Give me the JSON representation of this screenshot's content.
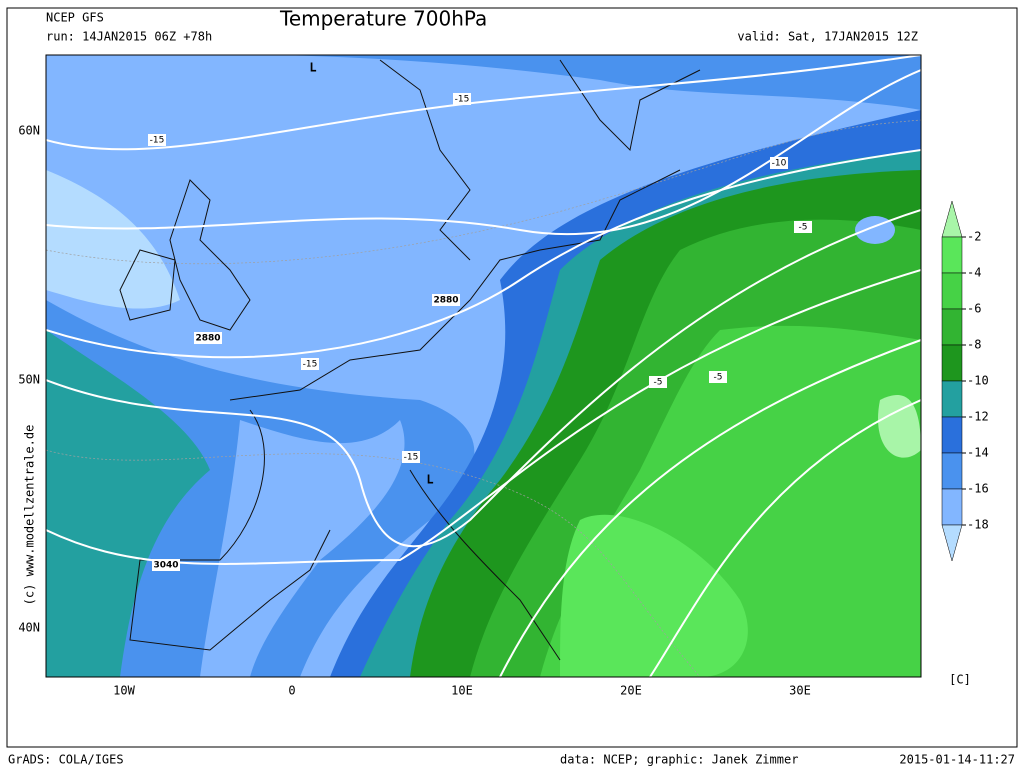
{
  "header": {
    "model": "NCEP GFS",
    "run": "run: 14JAN2015 06Z +78h",
    "title": "Temperature 700hPa",
    "valid": "valid: Sat, 17JAN2015 12Z"
  },
  "axes": {
    "lat_labels": [
      "60N",
      "50N",
      "40N"
    ],
    "lon_labels": [
      "10W",
      "0",
      "10E",
      "20E",
      "30E"
    ]
  },
  "colorbar": {
    "labels": [
      "-2",
      "-4",
      "-6",
      "-8",
      "-10",
      "-12",
      "-14",
      "-16",
      "-18"
    ],
    "unit": "[C]",
    "colors": [
      "#a8f5a8",
      "#5ae65a",
      "#46d246",
      "#32b432",
      "#1e961e",
      "#23a0a0",
      "#2a70dc",
      "#4a92ee",
      "#82b6ff",
      "#b4dcff"
    ]
  },
  "contour_labels": [
    "-15",
    "-15",
    "-15",
    "-15",
    "-10",
    "-5",
    "-5",
    "-5",
    "2880",
    "2880",
    "3040"
  ],
  "lows": [
    "L",
    "L"
  ],
  "credit": "(c) www.modellzentrale.de",
  "footer": {
    "software": "GrADS: COLA/IGES",
    "data": "data: NCEP; graphic: Janek Zimmer",
    "timestamp": "2015-01-14-11:27"
  }
}
